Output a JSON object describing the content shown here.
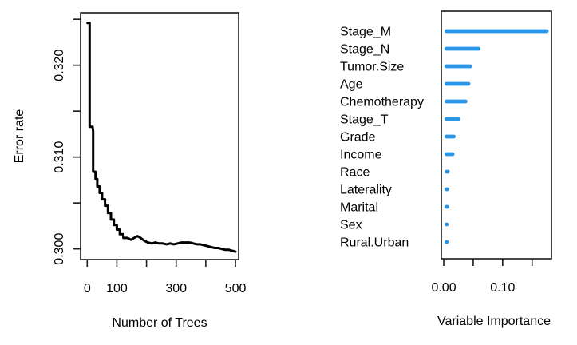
{
  "figure": {
    "background": "#ffffff",
    "axis_color": "#1a1a1a",
    "text_color": "#000000",
    "accent_bar_color": "#2a96e8",
    "curve_color": "#000000"
  },
  "chart_data": [
    {
      "id": "error_curve",
      "type": "line",
      "title": "",
      "xlabel": "Number of Trees",
      "ylabel": "Error rate",
      "xlim": [
        -22.3,
        510.7
      ],
      "ylim": [
        0.29884,
        0.32571
      ],
      "xticks": [
        0,
        100,
        200,
        300,
        400,
        500
      ],
      "xtick_labels": [
        "0",
        "100",
        "",
        "300",
        "",
        "500"
      ],
      "yticks": [
        0.3,
        0.305,
        0.31,
        0.315,
        0.32,
        0.325
      ],
      "ytick_labels": [
        "0.300",
        "",
        "0.310",
        "",
        "0.320",
        ""
      ],
      "grid": false,
      "legend": null,
      "points": [
        [
          1,
          0.3246
        ],
        [
          8,
          0.3246
        ],
        [
          8,
          0.3133
        ],
        [
          18,
          0.3133
        ],
        [
          20,
          0.3128
        ],
        [
          20,
          0.3084
        ],
        [
          28,
          0.3084
        ],
        [
          28,
          0.3076
        ],
        [
          34,
          0.3076
        ],
        [
          34,
          0.3068
        ],
        [
          42,
          0.3068
        ],
        [
          42,
          0.3061
        ],
        [
          50,
          0.3061
        ],
        [
          50,
          0.3054
        ],
        [
          60,
          0.3054
        ],
        [
          60,
          0.3047
        ],
        [
          70,
          0.3047
        ],
        [
          70,
          0.3039
        ],
        [
          80,
          0.3039
        ],
        [
          80,
          0.3032
        ],
        [
          90,
          0.3032
        ],
        [
          90,
          0.3026
        ],
        [
          100,
          0.3026
        ],
        [
          100,
          0.3021
        ],
        [
          110,
          0.3021
        ],
        [
          110,
          0.3016
        ],
        [
          122,
          0.3016
        ],
        [
          122,
          0.3012
        ],
        [
          135,
          0.3012
        ],
        [
          148,
          0.301
        ],
        [
          158,
          0.3012
        ],
        [
          170,
          0.3014
        ],
        [
          180,
          0.3012
        ],
        [
          192,
          0.3009
        ],
        [
          205,
          0.3007
        ],
        [
          218,
          0.3006
        ],
        [
          230,
          0.3007
        ],
        [
          242,
          0.3006
        ],
        [
          255,
          0.3006
        ],
        [
          268,
          0.3005
        ],
        [
          280,
          0.3006
        ],
        [
          292,
          0.3005
        ],
        [
          305,
          0.3006
        ],
        [
          318,
          0.3007
        ],
        [
          330,
          0.3007
        ],
        [
          345,
          0.3007
        ],
        [
          358,
          0.3006
        ],
        [
          370,
          0.3005
        ],
        [
          382,
          0.3005
        ],
        [
          394,
          0.3004
        ],
        [
          406,
          0.3003
        ],
        [
          418,
          0.3002
        ],
        [
          430,
          0.3001
        ],
        [
          442,
          0.3001
        ],
        [
          454,
          0.3
        ],
        [
          466,
          0.2999
        ],
        [
          478,
          0.2999
        ],
        [
          489,
          0.2998
        ],
        [
          500,
          0.2997
        ]
      ]
    },
    {
      "id": "variable_importance",
      "type": "bar",
      "orientation": "horizontal",
      "title": "",
      "xlabel": "Variable Importance",
      "ylabel": "",
      "categories": [
        "Stage_M",
        "Stage_N",
        "Tumor.Size",
        "Age",
        "Chemotherapy",
        "Stage_T",
        "Grade",
        "Income",
        "Race",
        "Laterality",
        "Marital",
        "Sex",
        "Rural.Urban"
      ],
      "values": [
        0.175,
        0.059,
        0.045,
        0.042,
        0.037,
        0.025,
        0.017,
        0.015,
        0.007,
        0.006,
        0.006,
        0.005,
        0.005
      ],
      "xlim": [
        -0.0041,
        0.1829
      ],
      "xticks": [
        0.0,
        0.05,
        0.1,
        0.15
      ],
      "xtick_labels": [
        "0.00",
        "",
        "0.10",
        ""
      ],
      "grid": false,
      "legend": null,
      "bar_color": "#2a96e8"
    }
  ]
}
